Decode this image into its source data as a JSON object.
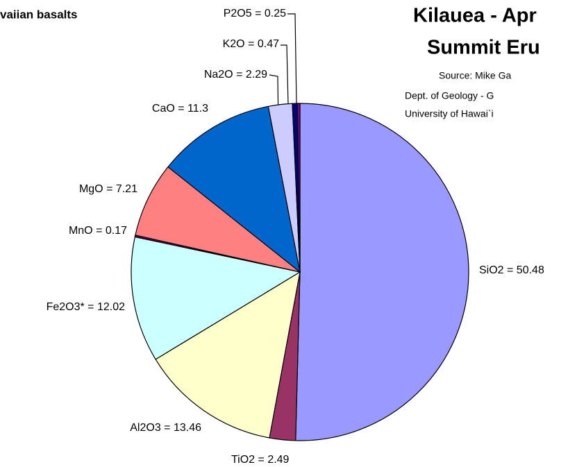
{
  "chart_data": {
    "type": "pie",
    "title": "Kilauea - Apr",
    "subtitle": "Summit Eru",
    "corner_title": "vaiian basalts",
    "source_lines": [
      "Source: Mike Ga",
      "Dept. of Geology - G",
      "University of Hawai`i"
    ],
    "values": [
      50.48,
      2.49,
      13.46,
      12.02,
      0.17,
      7.21,
      11.3,
      2.29,
      0.47,
      0.25
    ],
    "value_labels": [
      "SiO2 = 50.48",
      "TiO2 = 2.49",
      "Al2O3 = 13.46",
      "Fe2O3* = 12.02",
      "MnO = 0.17",
      "MgO = 7.21",
      "CaO = 11.3",
      "Na2O = 2.29",
      "K2O = 0.47",
      "P2O5 = 0.25"
    ],
    "colors": [
      "#9999ff",
      "#993366",
      "#ffffcc",
      "#ccffff",
      "#660066",
      "#ff8080",
      "#0066cc",
      "#ccccff",
      "#000080",
      "#800080"
    ]
  }
}
